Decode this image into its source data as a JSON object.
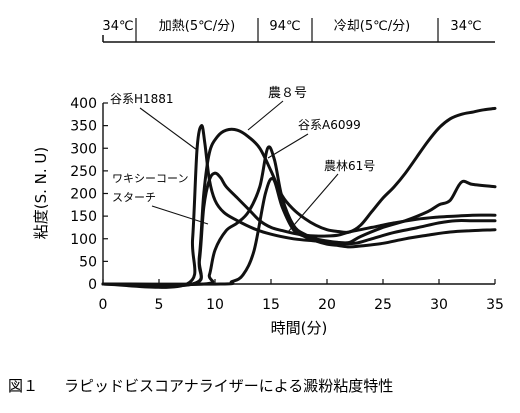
{
  "timeline": {
    "segments": [
      "34℃",
      "加熱(5℃/分)",
      "94℃",
      "冷却(5℃/分)",
      "34℃"
    ]
  },
  "caption": {
    "figure_no": "図１",
    "text": "ラピッドビスコアナライザーによる澱粉粘度特性"
  },
  "chart_data": {
    "type": "line",
    "xlabel": "時間(分)",
    "ylabel": "粘度(S. N. U)",
    "xlim": [
      0,
      35
    ],
    "ylim": [
      0,
      400
    ],
    "xticks": [
      0,
      5,
      10,
      15,
      20,
      25,
      30,
      35
    ],
    "yticks": [
      0,
      50,
      100,
      150,
      200,
      250,
      300,
      350,
      400
    ],
    "grid": false,
    "series": [
      {
        "name": "谷系H1881",
        "x": [
          0,
          7.5,
          8.0,
          8.4,
          8.8,
          9.1,
          9.5,
          10.0,
          10.8,
          12,
          13.5,
          15,
          17,
          19,
          21,
          22.5,
          24,
          26,
          28,
          30,
          31.5,
          33,
          35
        ],
        "y": [
          0,
          0,
          100,
          300,
          350,
          310,
          230,
          185,
          158,
          140,
          122,
          110,
          100,
          95,
          90,
          90,
          100,
          114,
          124,
          135,
          140,
          140,
          140
        ]
      },
      {
        "name": "農８号",
        "x": [
          0,
          8.0,
          8.6,
          9.0,
          9.5,
          10.2,
          11,
          12,
          13,
          14,
          15,
          16,
          17,
          18,
          19,
          20,
          21,
          22,
          23,
          24,
          25,
          26,
          27,
          28,
          29,
          30,
          31,
          32,
          33,
          34,
          35
        ],
        "y": [
          0,
          0,
          60,
          200,
          290,
          325,
          340,
          340,
          325,
          300,
          250,
          195,
          165,
          145,
          130,
          120,
          116,
          115,
          130,
          160,
          190,
          215,
          245,
          280,
          315,
          345,
          365,
          375,
          380,
          385,
          388
        ]
      },
      {
        "name": "谷系A6099",
        "x": [
          0,
          9.0,
          9.5,
          10.0,
          11,
          12,
          13,
          14,
          14.7,
          15.3,
          16,
          17,
          18,
          19,
          20,
          21,
          22,
          23,
          25,
          27,
          29,
          30,
          31,
          32,
          33,
          35
        ],
        "y": [
          0,
          0,
          20,
          75,
          118,
          135,
          160,
          215,
          300,
          275,
          190,
          130,
          110,
          100,
          95,
          92,
          92,
          105,
          125,
          140,
          160,
          175,
          185,
          225,
          220,
          215
        ]
      },
      {
        "name": "農林61号",
        "x": [
          0,
          10.5,
          11.5,
          12.5,
          13.5,
          14.5,
          15.2,
          16,
          17,
          18,
          19,
          20,
          21,
          22,
          23,
          25,
          27,
          29,
          31,
          33,
          35
        ],
        "y": [
          0,
          0,
          5,
          20,
          75,
          200,
          232,
          170,
          120,
          105,
          95,
          88,
          85,
          82,
          84,
          90,
          100,
          108,
          115,
          118,
          120
        ]
      },
      {
        "name": "ワキシーコーンスターチ",
        "x": [
          0,
          8.0,
          8.6,
          9.0,
          9.5,
          10.0,
          10.5,
          11,
          12,
          13,
          14,
          15,
          16,
          17,
          18,
          19,
          20,
          21,
          22,
          24,
          26,
          28,
          30,
          31.5,
          33,
          35
        ],
        "y": [
          0,
          0,
          50,
          170,
          230,
          245,
          235,
          215,
          190,
          165,
          140,
          125,
          118,
          112,
          108,
          106,
          106,
          108,
          115,
          125,
          135,
          143,
          148,
          150,
          152,
          152
        ]
      }
    ],
    "labels": [
      {
        "text": "谷系H1881"
      },
      {
        "text": "農８号"
      },
      {
        "text": "谷系A6099"
      },
      {
        "text": "農林61号"
      },
      {
        "text": "ワキシーコーン"
      },
      {
        "text": "スターチ"
      }
    ]
  }
}
